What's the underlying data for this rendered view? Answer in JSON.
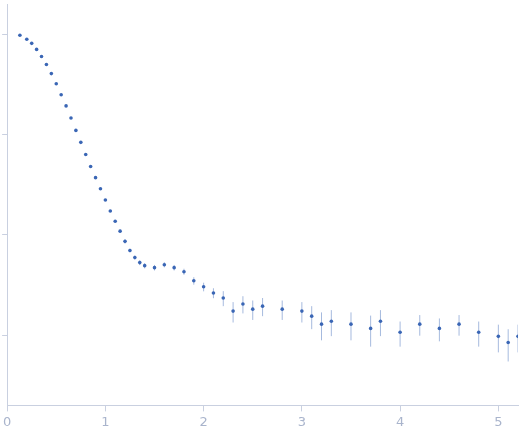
{
  "chart_data": {
    "type": "scatter",
    "x": [
      0.13,
      0.2,
      0.25,
      0.3,
      0.35,
      0.4,
      0.45,
      0.5,
      0.55,
      0.6,
      0.65,
      0.7,
      0.75,
      0.8,
      0.85,
      0.9,
      0.95,
      1.0,
      1.05,
      1.1,
      1.15,
      1.2,
      1.25,
      1.3,
      1.35,
      1.4,
      1.5,
      1.6,
      1.7,
      1.8,
      1.9,
      2.0,
      2.1,
      2.2,
      2.3,
      2.4,
      2.5,
      2.6,
      2.8,
      3.0,
      3.1,
      3.2,
      3.3,
      3.5,
      3.7,
      3.8,
      4.0,
      4.2,
      4.4,
      4.6,
      4.8,
      5.0,
      5.1,
      5.2
    ],
    "values": [
      0.977,
      0.891,
      0.811,
      0.706,
      0.6,
      0.499,
      0.405,
      0.321,
      0.249,
      0.193,
      0.146,
      0.11,
      0.0836,
      0.0633,
      0.048,
      0.0372,
      0.0288,
      0.0223,
      0.0173,
      0.0137,
      0.0109,
      0.00863,
      0.007,
      0.00595,
      0.0053,
      0.00494,
      0.00472,
      0.00505,
      0.00472,
      0.0043,
      0.00349,
      0.00304,
      0.00264,
      0.00235,
      0.00174,
      0.00205,
      0.00182,
      0.00195,
      0.00182,
      0.00174,
      0.00155,
      0.00129,
      0.00138,
      0.00129,
      0.00117,
      0.00138,
      0.00107,
      0.00129,
      0.00117,
      0.00129,
      0.00107,
      0.000975,
      0.000848,
      0.000975
    ],
    "errors": [
      0.005,
      0.005,
      0.004,
      0.004,
      0.003,
      0.003,
      0.002,
      0.002,
      0.002,
      0.001,
      0.001,
      0.001,
      0.0008,
      0.0006,
      0.0005,
      0.0005,
      0.0004,
      0.0004,
      0.0004,
      0.0004,
      0.0004,
      0.0004,
      0.0003,
      0.0003,
      0.0003,
      0.0003,
      0.0003,
      0.0003,
      0.0003,
      0.0003,
      0.0003,
      0.0003,
      0.0003,
      0.0004,
      0.0004,
      0.0004,
      0.0004,
      0.0004,
      0.0004,
      0.0004,
      0.0004,
      0.0004,
      0.0004,
      0.0004,
      0.0004,
      0.0004,
      0.0003,
      0.0003,
      0.0003,
      0.0003,
      0.0003,
      0.0003,
      0.0003,
      0.0003
    ],
    "color": "#3a66b5",
    "xlim": [
      0,
      5.2
    ],
    "xticks": [
      0,
      1,
      2,
      3,
      4,
      5
    ],
    "ylim": [
      0.0002,
      2
    ],
    "yticks": [
      0.001,
      0.01,
      0.1,
      1
    ],
    "log": "y",
    "grid": false,
    "tick_labels": "x",
    "marker": "circle"
  }
}
